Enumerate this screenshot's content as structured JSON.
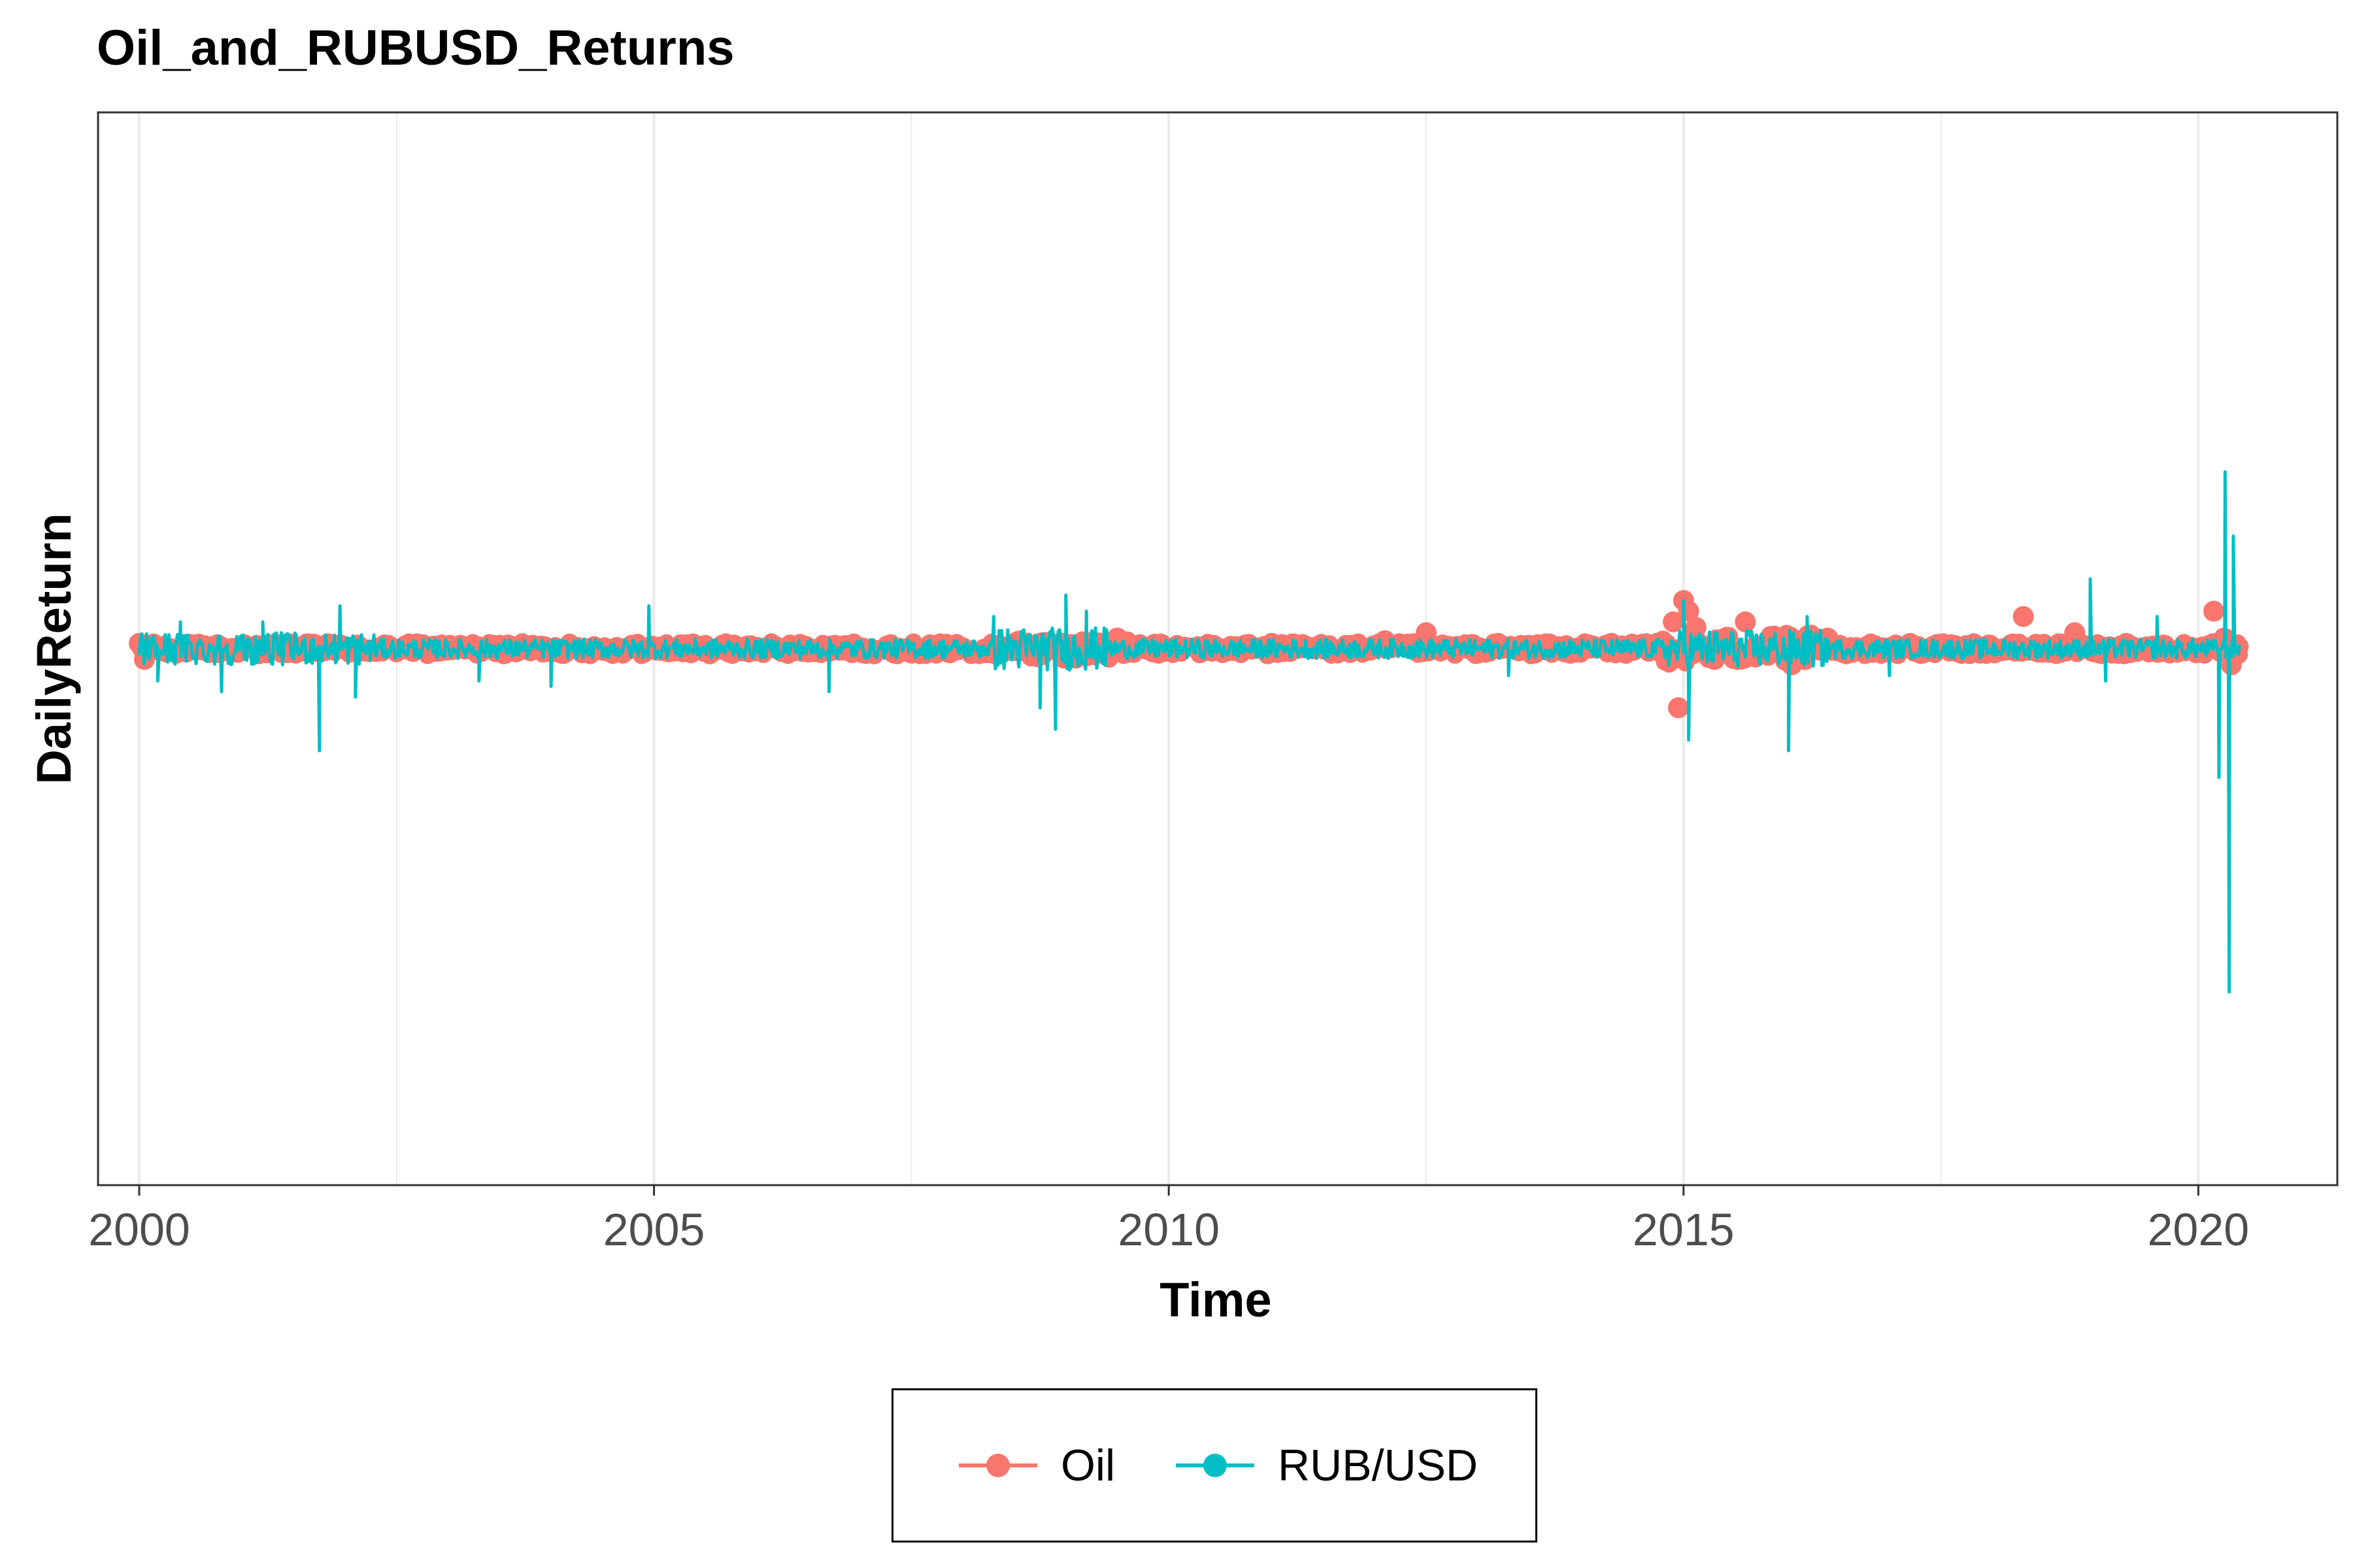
{
  "chart_data": {
    "type": "line",
    "title": "Oil_and_RUBUSD_Returns",
    "xlabel": "Time",
    "ylabel": "DailyReturn",
    "xlim": [
      1999.6,
      2021.35
    ],
    "ylim": [
      -1.0,
      1.0
    ],
    "x_ticks": [
      2000,
      2005,
      2010,
      2015,
      2020
    ],
    "x_tick_labels": [
      "2000",
      "2005",
      "2010",
      "2015",
      "2020"
    ],
    "x_minor_gridlines": [
      2002.5,
      2007.5,
      2012.5,
      2017.5
    ],
    "y_tick_labels_shown": false,
    "grid": "vertical",
    "legend_position": "bottom",
    "colors": {
      "oil": "#F8766D",
      "rub": "#00BFC4",
      "grid": "#ebebeb",
      "border": "#333333"
    },
    "series": [
      {
        "name": "Oil",
        "style": "points",
        "color": "#F8766D",
        "x": [
          2000.0,
          2000.05,
          2009.5,
          2011.0,
          2012.1,
          2012.5,
          2013.2,
          2014.3,
          2014.9,
          2014.95,
          2015.0,
          2015.05,
          2015.12,
          2015.3,
          2015.6,
          2016.05,
          2016.4,
          2017.2,
          2018.3,
          2018.8,
          2019.3,
          2020.15,
          2020.25,
          2020.32,
          2020.38
        ],
        "y": [
          0.01,
          -0.02,
          0.02,
          0.01,
          0.015,
          0.03,
          0.01,
          0.01,
          0.05,
          -0.11,
          0.09,
          0.07,
          0.04,
          -0.02,
          0.05,
          -0.03,
          0.02,
          0.01,
          0.06,
          0.03,
          0.01,
          0.07,
          0.02,
          -0.03,
          -0.01
        ]
      },
      {
        "name": "RUB/USD",
        "style": "line",
        "color": "#00BFC4",
        "baseline_noise": 0.018,
        "spikes": [
          {
            "x": 2000.18,
            "y": -0.06
          },
          {
            "x": 2000.4,
            "y": 0.05
          },
          {
            "x": 2000.8,
            "y": -0.08
          },
          {
            "x": 2001.2,
            "y": 0.05
          },
          {
            "x": 2001.75,
            "y": -0.19
          },
          {
            "x": 2001.95,
            "y": 0.08
          },
          {
            "x": 2002.1,
            "y": -0.09
          },
          {
            "x": 2003.3,
            "y": -0.06
          },
          {
            "x": 2004.0,
            "y": -0.07
          },
          {
            "x": 2004.95,
            "y": 0.08
          },
          {
            "x": 2006.7,
            "y": -0.08
          },
          {
            "x": 2008.3,
            "y": 0.06
          },
          {
            "x": 2008.75,
            "y": -0.11
          },
          {
            "x": 2008.9,
            "y": -0.15
          },
          {
            "x": 2009.0,
            "y": 0.1
          },
          {
            "x": 2009.2,
            "y": 0.07
          },
          {
            "x": 2013.3,
            "y": -0.05
          },
          {
            "x": 2015.0,
            "y": 0.09
          },
          {
            "x": 2015.05,
            "y": -0.17
          },
          {
            "x": 2016.02,
            "y": -0.19
          },
          {
            "x": 2016.2,
            "y": 0.06
          },
          {
            "x": 2017.0,
            "y": -0.05
          },
          {
            "x": 2018.95,
            "y": 0.13
          },
          {
            "x": 2019.1,
            "y": -0.06
          },
          {
            "x": 2019.6,
            "y": 0.06
          },
          {
            "x": 2020.2,
            "y": -0.24
          },
          {
            "x": 2020.26,
            "y": 0.33
          },
          {
            "x": 2020.3,
            "y": -0.64
          },
          {
            "x": 2020.34,
            "y": 0.21
          }
        ]
      }
    ]
  }
}
